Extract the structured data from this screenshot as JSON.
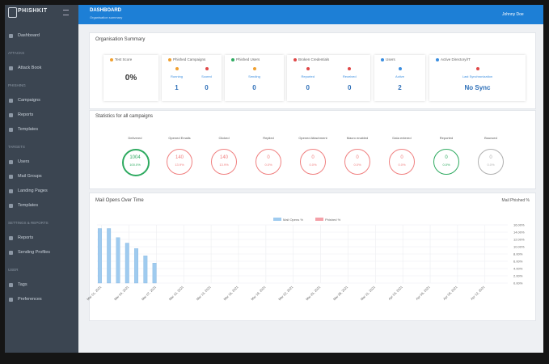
{
  "sidebar": {
    "logo": "PHISHKIT",
    "sections": [
      {
        "items": [
          "Dashboard"
        ]
      },
      {
        "heading": "ATTACKS",
        "items": [
          "Attack Book"
        ]
      },
      {
        "heading": "PHISHING",
        "items": [
          "Campaigns",
          "Reports",
          "Templates"
        ]
      },
      {
        "heading": "TARGETS",
        "items": [
          "Users",
          "Mail Groups",
          "Landing Pages",
          "Templates"
        ]
      },
      {
        "heading": "SETTINGS & REPORTS",
        "items": [
          "Reports",
          "Sending Profiles"
        ]
      },
      {
        "heading": "USER",
        "items": [
          "Tags",
          "Preferences"
        ]
      }
    ]
  },
  "topbar": {
    "title": "DASHBOARD",
    "subtitle": "Organisation summary",
    "user": "Johnny Doe"
  },
  "summary": {
    "title": "Organisation Summary",
    "cards": [
      {
        "title": "Test Score",
        "color": "#f0a030",
        "value": "0%"
      },
      {
        "title": "Phished Campaigns",
        "color": "#f0a030",
        "subs": [
          {
            "label": "Running",
            "value": 1,
            "color": "#f0a030"
          },
          {
            "label": "Scored",
            "value": 0,
            "color": "#e04848"
          }
        ]
      },
      {
        "title": "Phished Users",
        "color": "#2eaa60",
        "subs": [
          {
            "label": "Sending",
            "value": 0,
            "color": "#f0a030"
          }
        ]
      },
      {
        "title": "Broken Credentials",
        "color": "#e04848",
        "subs": [
          {
            "label": "Reported",
            "value": 0,
            "color": "#e04848"
          },
          {
            "label": "Received",
            "value": 0,
            "color": "#e04848"
          }
        ]
      },
      {
        "title": "Users",
        "color": "#3a8ee0",
        "subs": [
          {
            "label": "Active",
            "value": 2,
            "color": "#3a8ee0"
          }
        ]
      },
      {
        "title": "Active Directory/IT",
        "color": "#3a8ee0",
        "subs": [
          {
            "label": "Last Synchronization",
            "value": "No Sync",
            "color": "#e04848"
          }
        ]
      }
    ]
  },
  "statistics": {
    "title": "Statistics for all campaigns",
    "items": [
      {
        "label": "Delivered",
        "value": 1004,
        "percent": "100.0%",
        "color": "#2eaa60"
      },
      {
        "label": "Opened Emails",
        "value": 140,
        "percent": "13.9%",
        "color": "#f08080"
      },
      {
        "label": "Clicked",
        "value": 140,
        "percent": "13.9%",
        "color": "#f08080"
      },
      {
        "label": "Replied",
        "value": 0,
        "percent": "0.0%",
        "color": "#f08080"
      },
      {
        "label": "Opened Attachment",
        "value": 0,
        "percent": "0.0%",
        "color": "#f08080"
      },
      {
        "label": "Macro enabled",
        "value": 0,
        "percent": "0.0%",
        "color": "#f08080"
      },
      {
        "label": "Data entered",
        "value": 0,
        "percent": "0.0%",
        "color": "#f08080"
      },
      {
        "label": "Reported",
        "value": 0,
        "percent": "0.0%",
        "color": "#2eaa60"
      },
      {
        "label": "Bounced",
        "value": 0,
        "percent": "0.0%",
        "color": "#b0b0b0"
      }
    ]
  },
  "chart_data": {
    "type": "bar",
    "title": "Mail Opens Over Time",
    "toggle": "Mail Phished %",
    "categories": [
      "Mar 01, 2021",
      null,
      null,
      "Mar 04, 2021",
      null,
      null,
      "Mar 07, 2021",
      null,
      null,
      "Mar 10, 2021",
      null,
      null,
      "Mar 13, 2021",
      null,
      null,
      "Mar 16, 2021",
      null,
      null,
      "Mar 19, 2021",
      null,
      null,
      "Mar 22, 2021",
      null,
      null,
      "Mar 25, 2021",
      null,
      null,
      "Mar 28, 2021",
      null,
      null,
      "Mar 31, 2021",
      null,
      null,
      "Apr 03, 2021",
      null,
      null,
      "Apr 06, 2021",
      null,
      null,
      "Apr 09, 2021",
      null,
      null,
      "Apr 12, 2021",
      null,
      null
    ],
    "series": [
      {
        "name": "Mail Opens %",
        "color": "#9fcbef",
        "values": [
          15,
          15,
          12.5,
          11,
          9.5,
          7.5,
          5.5,
          0,
          0,
          0,
          0,
          0,
          0,
          0,
          0,
          0,
          0,
          0,
          0,
          0,
          0,
          0,
          0,
          0,
          0,
          0,
          0,
          0,
          0,
          0,
          0,
          0,
          0,
          0,
          0,
          0,
          0,
          0,
          0,
          0,
          0,
          0,
          0,
          0,
          0
        ]
      },
      {
        "name": "Phished %",
        "color": "#f4a0a8",
        "values": [
          0,
          0,
          0,
          0,
          0,
          0,
          0,
          0,
          0,
          0,
          0,
          0,
          0,
          0,
          0,
          0,
          0,
          0,
          0,
          0,
          0,
          0,
          0,
          0,
          0,
          0,
          0,
          0,
          0,
          0,
          0,
          0,
          0,
          0,
          0,
          0,
          0,
          0,
          0,
          0,
          0,
          0,
          0,
          0,
          0
        ]
      }
    ],
    "ylim": [
      0,
      16
    ],
    "yticks": [
      {
        "value": 0,
        "label": "0.00%"
      },
      {
        "value": 2,
        "label": "2.00%"
      },
      {
        "value": 4,
        "label": "4.00%"
      },
      {
        "value": 6,
        "label": "6.00%"
      },
      {
        "value": 8,
        "label": "8.00%"
      },
      {
        "value": 10,
        "label": "10.00%"
      },
      {
        "value": 12,
        "label": "12.00%"
      },
      {
        "value": 14,
        "label": "14.00%"
      },
      {
        "value": 16,
        "label": "16.00%"
      }
    ],
    "grid": true
  }
}
